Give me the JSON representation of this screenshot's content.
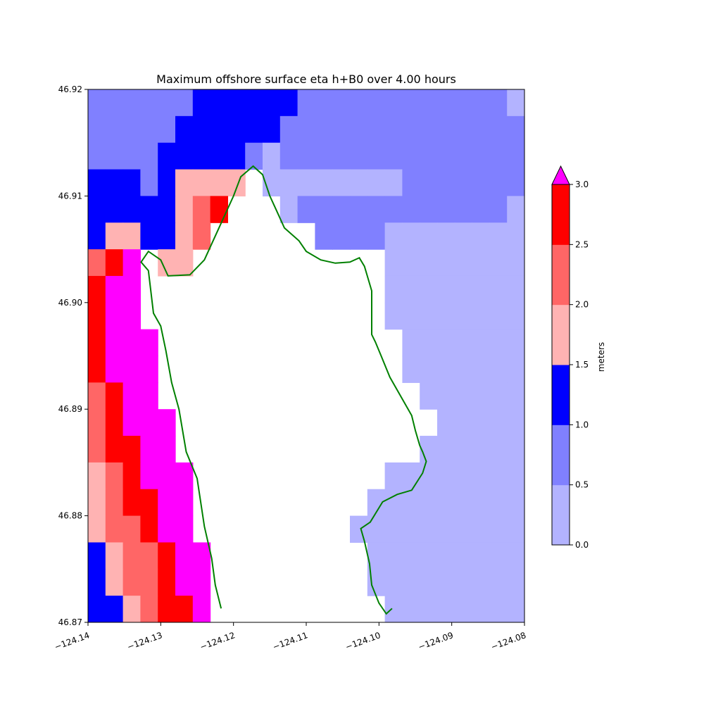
{
  "chart_data": {
    "type": "heatmap",
    "title": "Maximum offshore surface eta h+B0 over 4.00 hours",
    "xlim": [
      -124.14,
      -124.08
    ],
    "ylim": [
      46.87,
      46.92
    ],
    "xticks": [
      "−124.14",
      "−124.13",
      "−124.12",
      "−124.11",
      "−124.10",
      "−124.09",
      "−124.08"
    ],
    "yticks": [
      "46.87",
      "46.88",
      "46.89",
      "46.90",
      "46.91",
      "46.92"
    ],
    "colorbar": {
      "label": "meters",
      "ticks": [
        "0.0",
        "0.5",
        "1.0",
        "1.5",
        "2.0",
        "2.5",
        "3.0"
      ],
      "levels": [
        0,
        0.5,
        1.0,
        1.5,
        2.0,
        2.5,
        3.0
      ],
      "extend": "max",
      "colors": [
        "#b3b3ff",
        "#8080ff",
        "#0000ff",
        "#ffb3b3",
        "#ff6666",
        "#ff0000"
      ],
      "over_color": "#ff00ff"
    },
    "grid_note": "cells ~0.0025 deg lon x 0.0025 deg lat; value = color class index (0..5 = bins 0-0.5 .. 2.5-3.0, 6 = above 3.0, null = land/dry)",
    "grid": [
      [
        1,
        1,
        1,
        1,
        1,
        1,
        2,
        2,
        2,
        2,
        2,
        2,
        1,
        1,
        1,
        1,
        1,
        1,
        1,
        1,
        1,
        1,
        1,
        1,
        0
      ],
      [
        1,
        1,
        1,
        1,
        1,
        2,
        2,
        2,
        2,
        2,
        2,
        1,
        1,
        1,
        1,
        1,
        1,
        1,
        1,
        1,
        1,
        1,
        1,
        1,
        1
      ],
      [
        1,
        1,
        1,
        1,
        2,
        2,
        2,
        2,
        2,
        1,
        0,
        1,
        1,
        1,
        1,
        1,
        1,
        1,
        1,
        1,
        1,
        1,
        1,
        1,
        1
      ],
      [
        2,
        2,
        2,
        1,
        2,
        3,
        3,
        3,
        3,
        null,
        0,
        0,
        0,
        0,
        0,
        0,
        0,
        0,
        1,
        1,
        1,
        1,
        1,
        1,
        1
      ],
      [
        2,
        2,
        2,
        2,
        2,
        3,
        4,
        5,
        null,
        null,
        null,
        0,
        1,
        1,
        1,
        1,
        1,
        1,
        1,
        1,
        1,
        1,
        1,
        1,
        0
      ],
      [
        2,
        3,
        3,
        2,
        2,
        3,
        4,
        null,
        null,
        null,
        null,
        null,
        null,
        1,
        1,
        1,
        1,
        0,
        0,
        0,
        0,
        0,
        0,
        0,
        0
      ],
      [
        4,
        5,
        6,
        null,
        3,
        3,
        null,
        null,
        null,
        null,
        null,
        null,
        null,
        null,
        null,
        null,
        null,
        0,
        0,
        0,
        0,
        0,
        0,
        0,
        0
      ],
      [
        5,
        6,
        6,
        null,
        null,
        null,
        null,
        null,
        null,
        null,
        null,
        null,
        null,
        null,
        null,
        null,
        null,
        0,
        0,
        0,
        0,
        0,
        0,
        0,
        0
      ],
      [
        5,
        6,
        6,
        null,
        null,
        null,
        null,
        null,
        null,
        null,
        null,
        null,
        null,
        null,
        null,
        null,
        null,
        0,
        0,
        0,
        0,
        0,
        0,
        0,
        0
      ],
      [
        5,
        6,
        6,
        6,
        null,
        null,
        null,
        null,
        null,
        null,
        null,
        null,
        null,
        null,
        null,
        null,
        null,
        null,
        0,
        0,
        0,
        0,
        0,
        0,
        0
      ],
      [
        5,
        6,
        6,
        6,
        null,
        null,
        null,
        null,
        null,
        null,
        null,
        null,
        null,
        null,
        null,
        null,
        null,
        null,
        0,
        0,
        0,
        0,
        0,
        0,
        0
      ],
      [
        4,
        5,
        6,
        6,
        null,
        null,
        null,
        null,
        null,
        null,
        null,
        null,
        null,
        null,
        null,
        null,
        null,
        null,
        null,
        0,
        0,
        0,
        0,
        0,
        0
      ],
      [
        4,
        5,
        6,
        6,
        6,
        null,
        null,
        null,
        null,
        null,
        null,
        null,
        null,
        null,
        null,
        null,
        null,
        null,
        null,
        null,
        0,
        0,
        0,
        0,
        0
      ],
      [
        4,
        5,
        5,
        6,
        6,
        null,
        null,
        null,
        null,
        null,
        null,
        null,
        null,
        null,
        null,
        null,
        null,
        null,
        null,
        0,
        0,
        0,
        0,
        0,
        0
      ],
      [
        3,
        4,
        5,
        6,
        6,
        6,
        null,
        null,
        null,
        null,
        null,
        null,
        null,
        null,
        null,
        null,
        null,
        0,
        0,
        0,
        0,
        0,
        0,
        0,
        0
      ],
      [
        3,
        4,
        5,
        5,
        6,
        6,
        null,
        null,
        null,
        null,
        null,
        null,
        null,
        null,
        null,
        null,
        0,
        0,
        0,
        0,
        0,
        0,
        0,
        0,
        0
      ],
      [
        3,
        4,
        4,
        5,
        6,
        6,
        null,
        null,
        null,
        null,
        null,
        null,
        null,
        null,
        null,
        0,
        0,
        0,
        0,
        0,
        0,
        0,
        0,
        0,
        0
      ],
      [
        2,
        3,
        4,
        4,
        5,
        6,
        6,
        null,
        null,
        null,
        null,
        null,
        null,
        null,
        null,
        null,
        0,
        0,
        0,
        0,
        0,
        0,
        0,
        0,
        0
      ],
      [
        2,
        3,
        4,
        4,
        5,
        6,
        6,
        null,
        null,
        null,
        null,
        null,
        null,
        null,
        null,
        null,
        0,
        0,
        0,
        0,
        0,
        0,
        0,
        0,
        0
      ],
      [
        2,
        2,
        3,
        4,
        5,
        5,
        6,
        null,
        null,
        null,
        null,
        null,
        null,
        null,
        null,
        null,
        null,
        0,
        0,
        0,
        0,
        0,
        0,
        0,
        0
      ]
    ],
    "coastline": [
      [
        -124.1217,
        46.8713
      ],
      [
        -124.1225,
        46.8735
      ],
      [
        -124.123,
        46.876
      ],
      [
        -124.124,
        46.879
      ],
      [
        -124.125,
        46.8835
      ],
      [
        -124.1265,
        46.886
      ],
      [
        -124.1275,
        46.89
      ],
      [
        -124.1285,
        46.8925
      ],
      [
        -124.1293,
        46.8955
      ],
      [
        -124.13,
        46.8978
      ],
      [
        -124.131,
        46.899
      ],
      [
        -124.1317,
        46.903
      ],
      [
        -124.1327,
        46.9038
      ],
      [
        -124.1317,
        46.9048
      ],
      [
        -124.13,
        46.904
      ],
      [
        -124.129,
        46.9025
      ],
      [
        -124.126,
        46.9026
      ],
      [
        -124.124,
        46.904
      ],
      [
        -124.122,
        46.907
      ],
      [
        -124.12,
        46.91
      ],
      [
        -124.119,
        46.9118
      ],
      [
        -124.1173,
        46.9128
      ],
      [
        -124.116,
        46.912
      ],
      [
        -124.115,
        46.91
      ],
      [
        -124.114,
        46.9085
      ],
      [
        -124.113,
        46.907
      ],
      [
        -124.111,
        46.9058
      ],
      [
        -124.11,
        46.9048
      ],
      [
        -124.108,
        46.904
      ],
      [
        -124.106,
        46.9037
      ],
      [
        -124.104,
        46.9038
      ],
      [
        -124.1027,
        46.9042
      ],
      [
        -124.102,
        46.9034
      ],
      [
        -124.101,
        46.9011
      ],
      [
        -124.101,
        46.897
      ],
      [
        -124.1005,
        46.8963
      ],
      [
        -124.0997,
        46.895
      ],
      [
        -124.0985,
        46.893
      ],
      [
        -124.096,
        46.89
      ],
      [
        -124.0955,
        46.8894
      ],
      [
        -124.095,
        46.888
      ],
      [
        -124.0944,
        46.8866
      ],
      [
        -124.094,
        46.886
      ],
      [
        -124.0935,
        46.8851
      ],
      [
        -124.094,
        46.884
      ],
      [
        -124.0955,
        46.8824
      ],
      [
        -124.0975,
        46.882
      ],
      [
        -124.0995,
        46.8813
      ],
      [
        -124.1012,
        46.8794
      ],
      [
        -124.1025,
        46.8788
      ],
      [
        -124.102,
        46.8776
      ],
      [
        -124.1013,
        46.8755
      ],
      [
        -124.101,
        46.8735
      ],
      [
        -124.1,
        46.8718
      ],
      [
        -124.099,
        46.8708
      ],
      [
        -124.0982,
        46.8713
      ]
    ],
    "coastline_color": "#008000",
    "land_color": "#ffffff"
  }
}
